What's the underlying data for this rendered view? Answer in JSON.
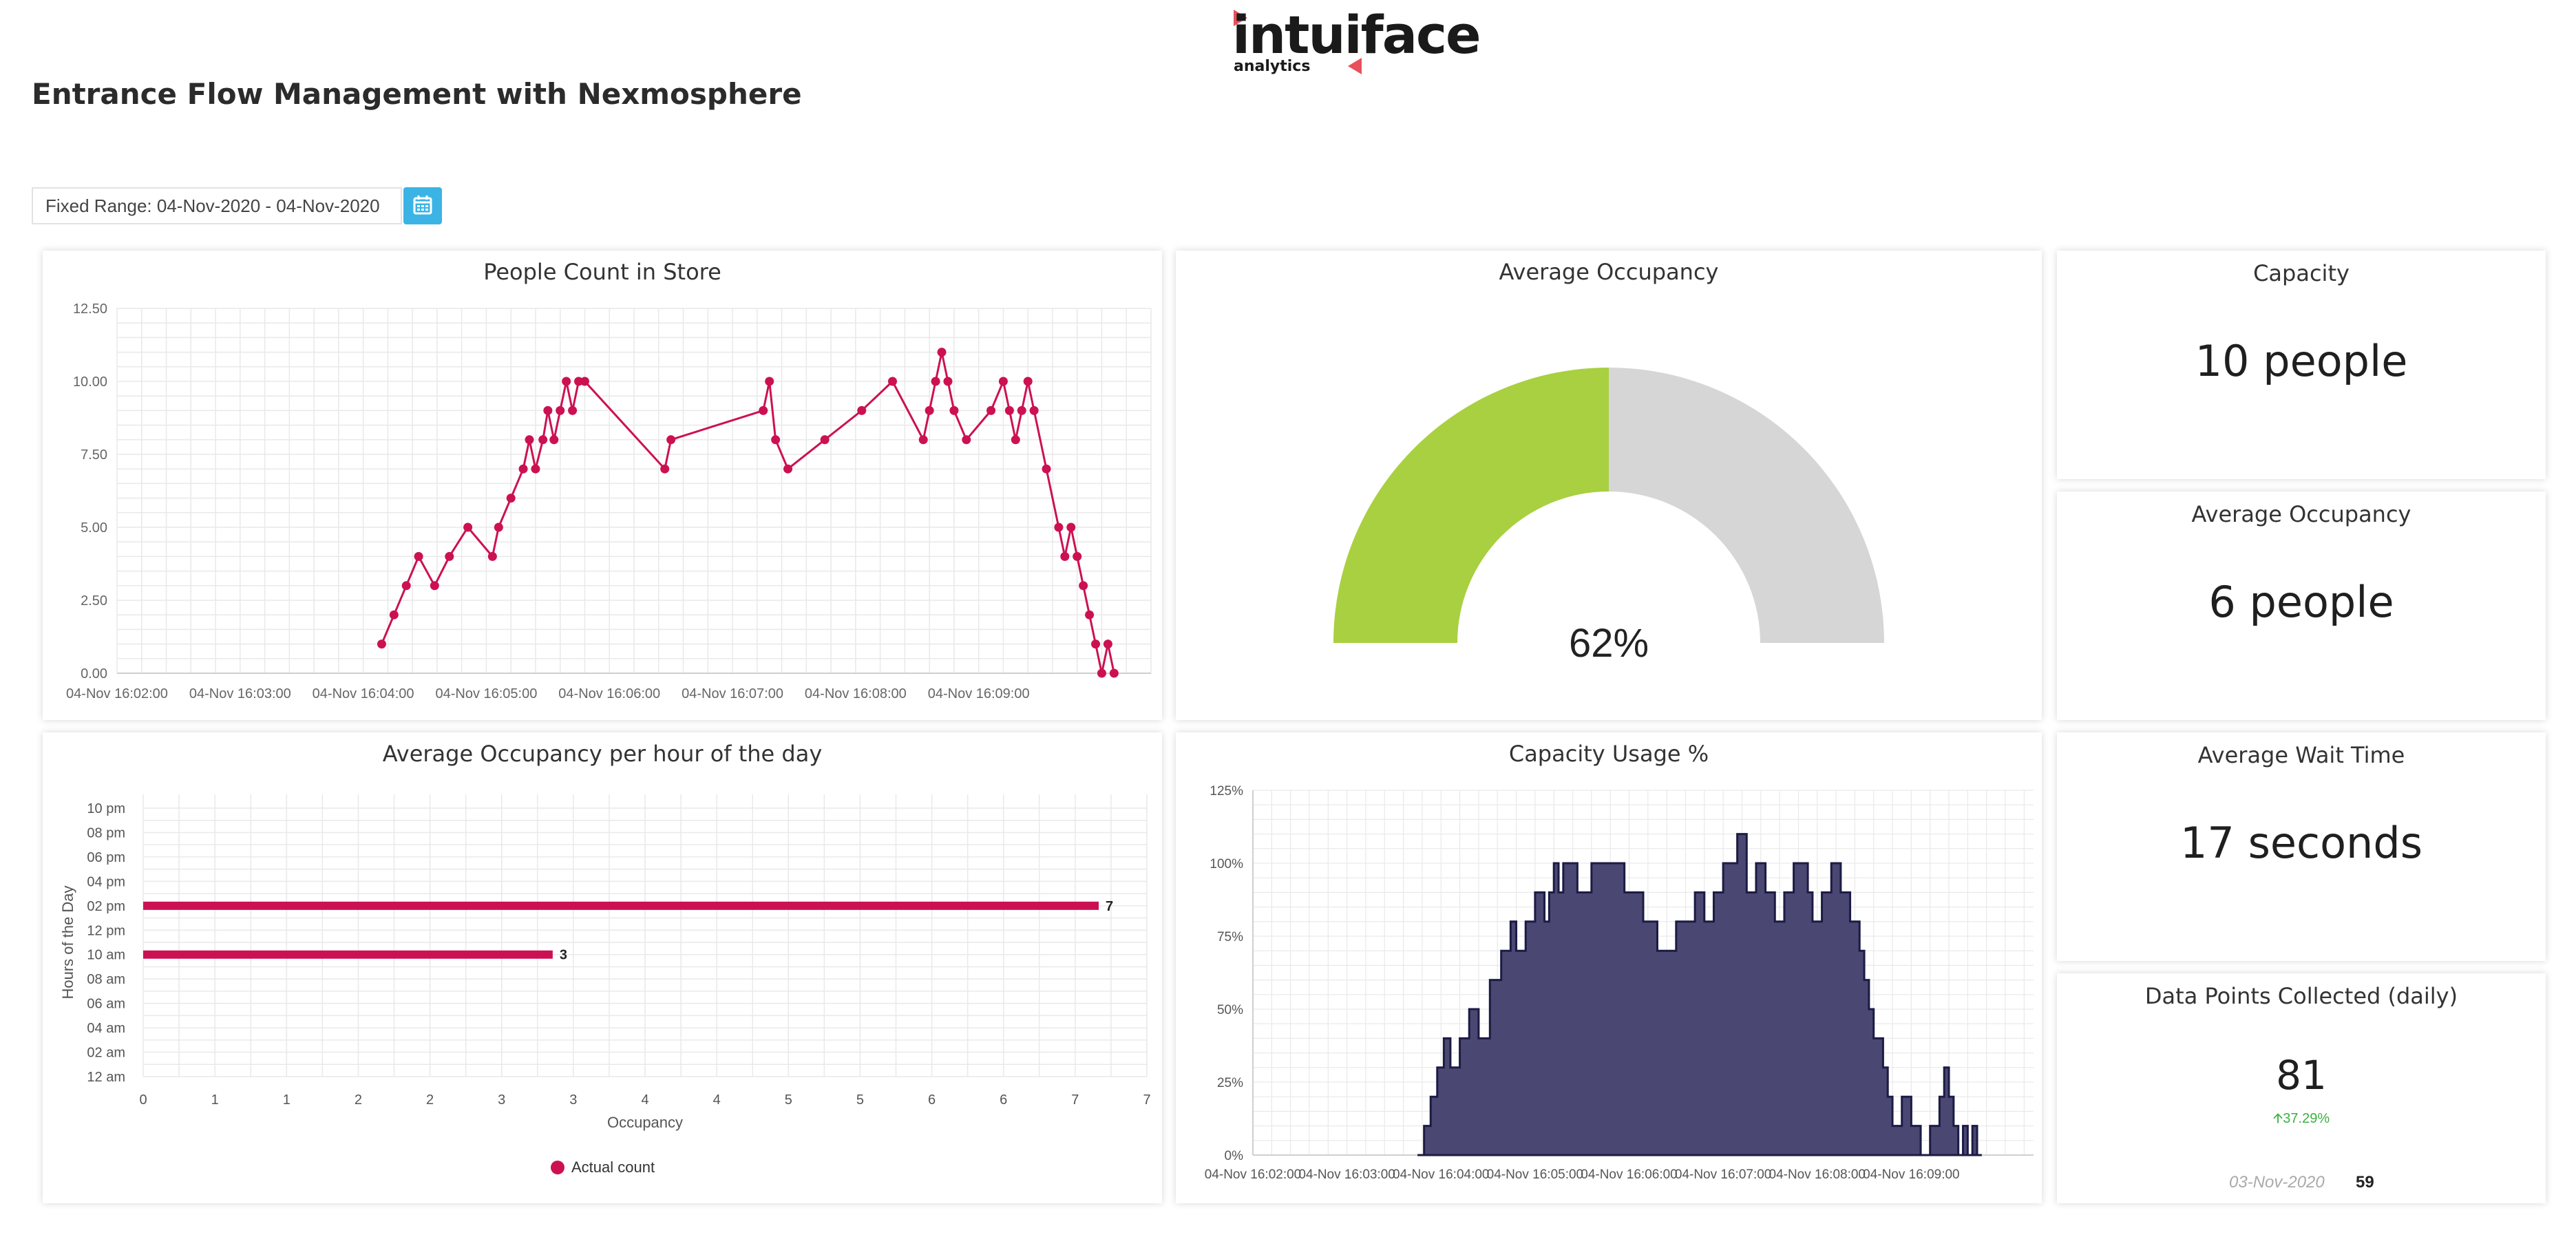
{
  "logo": {
    "brand": "intuiface",
    "sub": "analytics",
    "accent": "#e8505b"
  },
  "header": {
    "title": "Entrance Flow Management with Nexmosphere"
  },
  "date_range": {
    "label": "Fixed Range: 04-Nov-2020 - 04-Nov-2020",
    "button_color": "#3bb4e5"
  },
  "cards": {
    "people_count": {
      "title": "People Count in Store"
    },
    "avg_occupancy_gauge": {
      "title": "Average Occupancy"
    },
    "capacity": {
      "title": "Capacity",
      "value": "10 people"
    },
    "avg_occupancy": {
      "title": "Average Occupancy",
      "value": "6 people"
    },
    "per_hour": {
      "title": "Average Occupancy per hour of the day"
    },
    "capacity_usage": {
      "title": "Capacity Usage %"
    },
    "avg_wait": {
      "title": "Average Wait Time",
      "value": "17 seconds"
    },
    "data_points": {
      "title": "Data Points Collected (daily)",
      "value": "81",
      "change": "37.29%",
      "prev_date": "03-Nov-2020",
      "prev_value": "59"
    }
  },
  "colors": {
    "line": "#cc1152",
    "gauge_fill": "#a8d040",
    "gauge_rest": "#d6d6d6",
    "area_fill": "#4a4873",
    "area_stroke": "#1c1b44",
    "grid": "#e9e9e9",
    "up": "#3cb043"
  },
  "chart_data": [
    {
      "type": "line",
      "title": "People Count in Store",
      "ylim": [
        0,
        12.5
      ],
      "yticks": [
        "0.00",
        "2.50",
        "5.00",
        "7.50",
        "10.00",
        "12.50"
      ],
      "xticks": [
        "04-Nov 16:02:00",
        "04-Nov 16:03:00",
        "04-Nov 16:04:00",
        "04-Nov 16:05:00",
        "04-Nov 16:06:00",
        "04-Nov 16:07:00",
        "04-Nov 16:08:00",
        "04-Nov 16:09:00"
      ],
      "x_minutes_after_1602": [
        2.15,
        2.25,
        2.35,
        2.45,
        2.58,
        2.7,
        2.85,
        3.05,
        3.1,
        3.2,
        3.3,
        3.35,
        3.4,
        3.46,
        3.5,
        3.55,
        3.6,
        3.65,
        3.7,
        3.75,
        3.8,
        4.45,
        4.5,
        5.25,
        5.3,
        5.35,
        5.45,
        5.75,
        6.05,
        6.3,
        6.55,
        6.6,
        6.65,
        6.7,
        6.75,
        6.8,
        6.9,
        7.1,
        7.2,
        7.25,
        7.3,
        7.35,
        7.4,
        7.45,
        7.55,
        7.65,
        7.7,
        7.75,
        7.8,
        7.85,
        7.9,
        7.95,
        8.0,
        8.05,
        8.1
      ],
      "values": [
        1,
        2,
        3,
        4,
        3,
        4,
        5,
        4,
        5,
        6,
        7,
        8,
        7,
        8,
        9,
        8,
        9,
        10,
        9,
        10,
        10,
        7,
        8,
        9,
        10,
        8,
        7,
        8,
        9,
        10,
        8,
        9,
        10,
        11,
        10,
        9,
        8,
        9,
        10,
        9,
        8,
        9,
        10,
        9,
        7,
        5,
        4,
        5,
        4,
        3,
        2,
        1,
        0,
        1,
        0
      ]
    },
    {
      "type": "gauge",
      "title": "Average Occupancy",
      "value": 62,
      "label": "62%"
    },
    {
      "type": "bar",
      "orientation": "horizontal",
      "title": "Average Occupancy per hour of the day",
      "categories": [
        "12 am",
        "02 am",
        "04 am",
        "06 am",
        "08 am",
        "10 am",
        "12 pm",
        "02 pm",
        "04 pm",
        "06 pm",
        "08 pm",
        "10 pm"
      ],
      "series": [
        {
          "name": "Actual count",
          "values": [
            null,
            null,
            null,
            null,
            null,
            3,
            null,
            7,
            null,
            null,
            null,
            null
          ]
        }
      ],
      "xlabel": "Occupancy",
      "ylabel": "Hours of the Day",
      "xticks": [
        "0",
        "1",
        "1",
        "2",
        "2",
        "3",
        "3",
        "4",
        "4",
        "5",
        "5",
        "6",
        "6",
        "7",
        "7"
      ],
      "xlim": [
        0,
        7
      ],
      "legend": "bottom"
    },
    {
      "type": "area",
      "title": "Capacity Usage %",
      "ylim": [
        0,
        125
      ],
      "yticks": [
        "0%",
        "25%",
        "50%",
        "75%",
        "100%",
        "125%"
      ],
      "xticks": [
        "04-Nov 16:02:00",
        "04-Nov 16:03:00",
        "04-Nov 16:04:00",
        "04-Nov 16:05:00",
        "04-Nov 16:06:00",
        "04-Nov 16:07:00",
        "04-Nov 16:08:00",
        "04-Nov 16:09:00"
      ],
      "x_minutes_after_1602": [
        1.75,
        1.82,
        1.89,
        1.96,
        2.03,
        2.1,
        2.2,
        2.3,
        2.4,
        2.52,
        2.64,
        2.74,
        2.8,
        2.9,
        3.0,
        3.1,
        3.15,
        3.2,
        3.25,
        3.3,
        3.35,
        3.45,
        3.6,
        3.8,
        3.95,
        4.15,
        4.3,
        4.5,
        4.7,
        4.8,
        4.9,
        5.0,
        5.15,
        5.25,
        5.35,
        5.45,
        5.55,
        5.65,
        5.75,
        5.85,
        5.9,
        5.95,
        6.05,
        6.15,
        6.25,
        6.35,
        6.45,
        6.5,
        6.55,
        6.6,
        6.7,
        6.75,
        6.8,
        6.9,
        7.0,
        7.1,
        7.2,
        7.3,
        7.35,
        7.4,
        7.45,
        7.5,
        7.55,
        7.6,
        7.65,
        7.7,
        7.75
      ],
      "values": [
        0,
        10,
        20,
        30,
        40,
        30,
        40,
        50,
        40,
        60,
        70,
        80,
        70,
        80,
        90,
        80,
        90,
        100,
        90,
        100,
        100,
        90,
        100,
        100,
        90,
        80,
        70,
        80,
        90,
        80,
        90,
        100,
        110,
        90,
        100,
        90,
        80,
        90,
        100,
        100,
        90,
        80,
        90,
        100,
        90,
        80,
        70,
        60,
        50,
        40,
        30,
        20,
        10,
        20,
        10,
        0,
        10,
        20,
        30,
        20,
        10,
        0,
        10,
        0,
        10,
        0,
        0
      ]
    }
  ]
}
